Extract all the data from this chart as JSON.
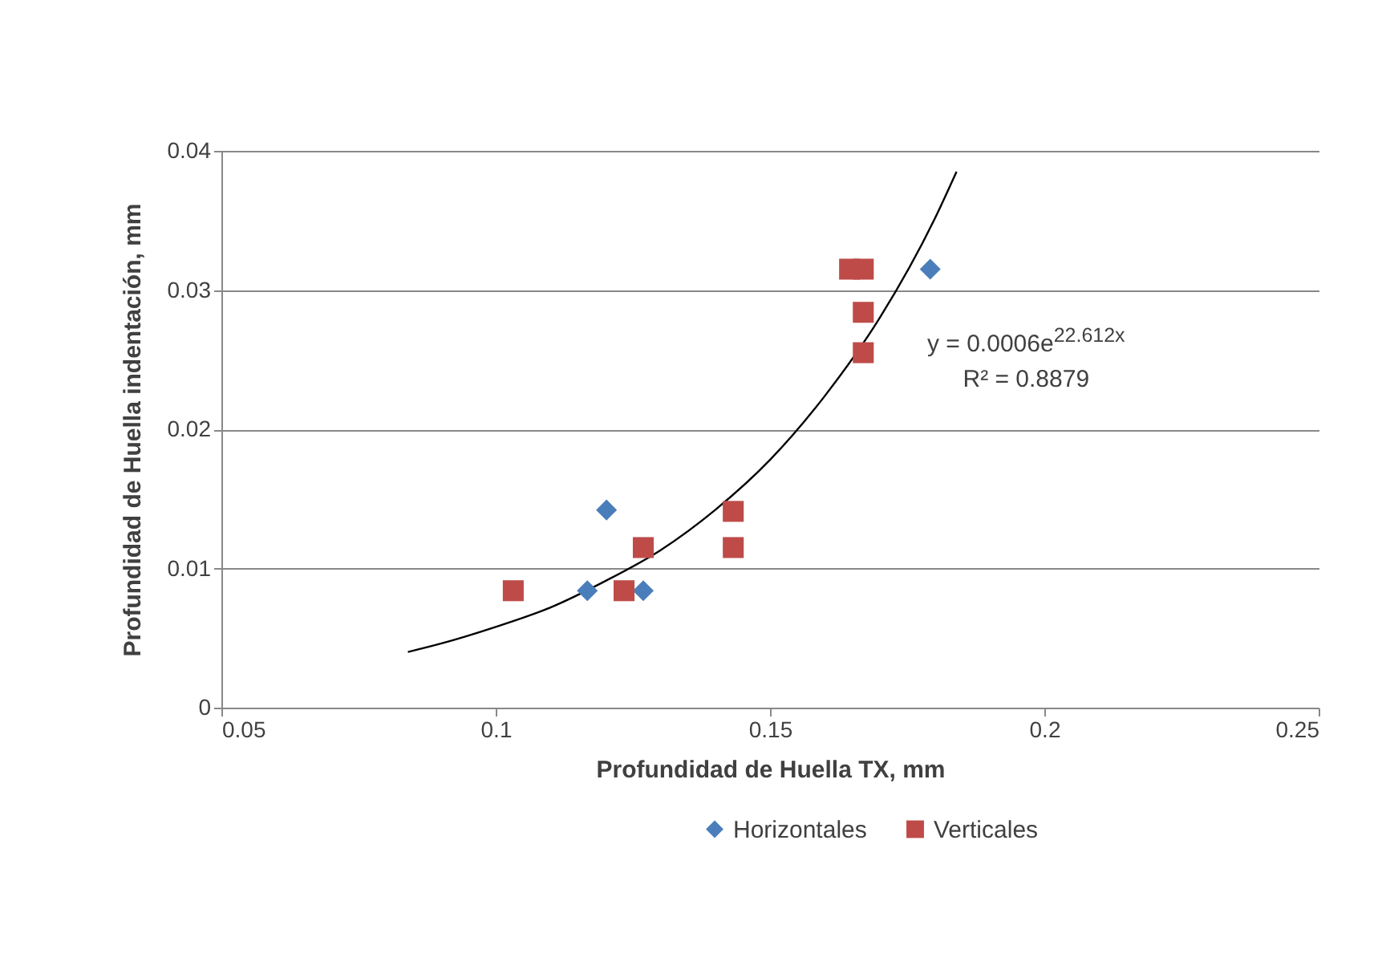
{
  "chart_data": {
    "type": "scatter",
    "xlabel": "Profundidad de Huella TX, mm",
    "ylabel": "Profundidad de Huella indentación, mm",
    "xlim": [
      0.05,
      0.25
    ],
    "xticks": [
      0.05,
      0.1,
      0.15,
      0.2,
      0.25
    ],
    "ylim": [
      0,
      0.04
    ],
    "yticks": [
      0,
      0.01,
      0.02,
      0.03,
      0.04
    ],
    "grid": "y",
    "legend": "bottom",
    "annotations": [
      "y = 0.0006e$^{22.612x}$",
      "R² = 0.8879"
    ],
    "series": [
      {
        "name": "Horizontales",
        "color": "#4a7ebb",
        "marker": "diamond",
        "x": [
          0.1167,
          0.1202,
          0.1269,
          0.1792
        ],
        "values": [
          0.0084,
          0.0142,
          0.0084,
          0.0315
        ]
      },
      {
        "name": "Verticales",
        "color": "#be4b48",
        "marker": "square",
        "x": [
          0.1032,
          0.1234,
          0.1269,
          0.1433,
          0.1433,
          0.1645,
          0.167,
          0.167,
          0.167
        ],
        "values": [
          0.0084,
          0.0084,
          0.0115,
          0.0141,
          0.0115,
          0.0315,
          0.0315,
          0.0284,
          0.0255
        ]
      },
      {
        "type": "line",
        "color": "#000000",
        "marker": "none",
        "x": [
          0.084,
          0.09,
          0.1,
          0.11,
          0.12,
          0.13,
          0.14,
          0.15,
          0.16,
          0.17,
          0.18,
          0.184
        ],
        "values": [
          0.004,
          0.0046,
          0.0058,
          0.0072,
          0.0091,
          0.0113,
          0.0142,
          0.0178,
          0.0224,
          0.028,
          0.0351,
          0.0385
        ]
      }
    ]
  }
}
